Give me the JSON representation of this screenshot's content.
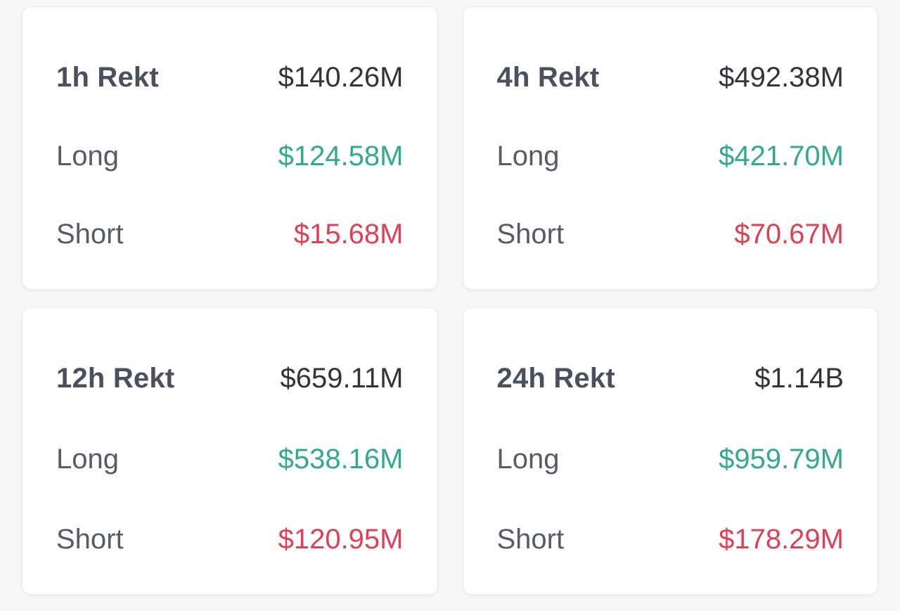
{
  "labels": {
    "long": "Long",
    "short": "Short"
  },
  "colors": {
    "page_background": "#f7f7f8",
    "card_background": "#ffffff",
    "card_border": "#e9eaec",
    "card_title": "#495160",
    "card_total": "#2f343d",
    "row_label": "#555c69",
    "long_value": "#33a98c",
    "short_value": "#e04053"
  },
  "cards": [
    {
      "title": "1h Rekt",
      "total": "$140.26M",
      "long": "$124.58M",
      "short": "$15.68M"
    },
    {
      "title": "4h Rekt",
      "total": "$492.38M",
      "long": "$421.70M",
      "short": "$70.67M"
    },
    {
      "title": "12h Rekt",
      "total": "$659.11M",
      "long": "$538.16M",
      "short": "$120.95M"
    },
    {
      "title": "24h Rekt",
      "total": "$1.14B",
      "long": "$959.79M",
      "short": "$178.29M"
    }
  ]
}
